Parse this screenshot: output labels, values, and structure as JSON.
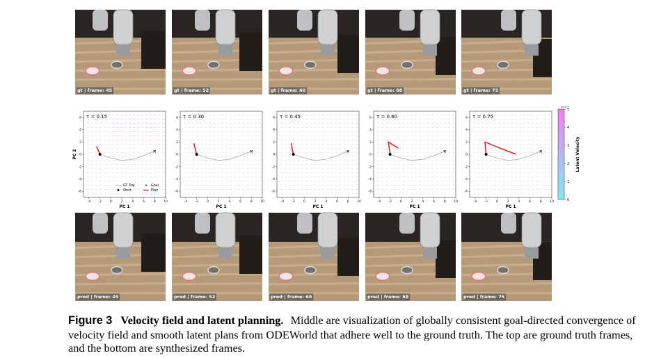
{
  "top_frames": [
    {
      "label": "gt | frame: 45"
    },
    {
      "label": "gt | frame: 52"
    },
    {
      "label": "gt | frame: 60"
    },
    {
      "label": "gt | frame: 68"
    },
    {
      "label": "gt | frame: 75"
    }
  ],
  "bottom_frames": [
    {
      "label": "pred | frame: 45"
    },
    {
      "label": "pred | frame: 52"
    },
    {
      "label": "pred | frame: 60"
    },
    {
      "label": "pred | frame: 68"
    },
    {
      "label": "pred | frame: 75"
    }
  ],
  "chart_data": [
    {
      "type": "line",
      "title": "τ = 0.15",
      "xlabel": "PC 1",
      "ylabel": "PC 2",
      "xlim": [
        -5,
        10
      ],
      "ylim": [
        -7,
        7
      ],
      "xticks": [
        -4,
        -2,
        0,
        2,
        4,
        6,
        8,
        10
      ],
      "yticks": [
        -6,
        -4,
        -2,
        0,
        2,
        4,
        6
      ],
      "legend": "lower right",
      "series": [
        {
          "name": "GT Traj",
          "color": "#b0b0b0",
          "x": [
            -2,
            0,
            2,
            4,
            6,
            8
          ],
          "values": [
            0,
            -0.6,
            -1,
            -0.8,
            -0.2,
            0.5
          ]
        },
        {
          "name": "Plan",
          "color": "#e01010",
          "x": [
            -2,
            -2.6
          ],
          "values": [
            0,
            1.3
          ]
        },
        {
          "name": "Start",
          "color": "#000000",
          "marker": "o",
          "x": [
            -2
          ],
          "values": [
            0
          ]
        },
        {
          "name": "Goal",
          "color": "#000000",
          "marker": "x",
          "x": [
            8
          ],
          "values": [
            0.5
          ]
        }
      ]
    },
    {
      "type": "line",
      "title": "τ = 0.30",
      "xlabel": "PC 1",
      "xlim": [
        -5,
        10
      ],
      "ylim": [
        -7,
        7
      ],
      "xticks": [
        -4,
        -2,
        0,
        2,
        4,
        6,
        8,
        10
      ],
      "yticks": [
        -6,
        -4,
        -2,
        0,
        2,
        4,
        6
      ],
      "series": [
        {
          "color": "#b0b0b0",
          "x": [
            -2,
            0,
            2,
            4,
            6,
            8
          ],
          "values": [
            0,
            -0.6,
            -1,
            -0.8,
            -0.2,
            0.5
          ]
        },
        {
          "color": "#e01010",
          "x": [
            -2,
            -2.5
          ],
          "values": [
            0,
            1.8
          ]
        },
        {
          "color": "#000000",
          "marker": "o",
          "x": [
            -2
          ],
          "values": [
            0
          ]
        },
        {
          "color": "#000000",
          "marker": "x",
          "x": [
            8
          ],
          "values": [
            0.5
          ]
        }
      ]
    },
    {
      "type": "line",
      "title": "τ = 0.45",
      "xlabel": "PC 1",
      "xlim": [
        -5,
        10
      ],
      "ylim": [
        -7,
        7
      ],
      "xticks": [
        -4,
        -2,
        0,
        2,
        4,
        6,
        8,
        10
      ],
      "yticks": [
        -6,
        -4,
        -2,
        0,
        2,
        4,
        6
      ],
      "series": [
        {
          "color": "#b0b0b0",
          "x": [
            -2,
            0,
            2,
            4,
            6,
            8
          ],
          "values": [
            0,
            -0.6,
            -1,
            -0.8,
            -0.2,
            0.5
          ]
        },
        {
          "color": "#e01010",
          "x": [
            -2,
            -2.4
          ],
          "values": [
            0,
            1.8
          ]
        },
        {
          "color": "#000000",
          "marker": "o",
          "x": [
            -2
          ],
          "values": [
            0
          ]
        },
        {
          "color": "#000000",
          "marker": "x",
          "x": [
            8
          ],
          "values": [
            0.5
          ]
        }
      ]
    },
    {
      "type": "line",
      "title": "τ = 0.60",
      "xlabel": "PC 1",
      "xlim": [
        -5,
        10
      ],
      "ylim": [
        -7,
        7
      ],
      "xticks": [
        -4,
        -2,
        0,
        2,
        4,
        6,
        8,
        10
      ],
      "yticks": [
        -6,
        -4,
        -2,
        0,
        2,
        4,
        6
      ],
      "series": [
        {
          "color": "#b0b0b0",
          "x": [
            -2,
            0,
            2,
            4,
            6,
            8
          ],
          "values": [
            0,
            -0.6,
            -1,
            -0.8,
            -0.2,
            0.5
          ]
        },
        {
          "color": "#e01010",
          "x": [
            -2,
            -2.3,
            -0.5
          ],
          "values": [
            0,
            2,
            1
          ]
        },
        {
          "color": "#000000",
          "marker": "o",
          "x": [
            -2
          ],
          "values": [
            0
          ]
        },
        {
          "color": "#000000",
          "marker": "x",
          "x": [
            8
          ],
          "values": [
            0.5
          ]
        }
      ]
    },
    {
      "type": "line",
      "title": "τ = 0.75",
      "xlabel": "PC 1",
      "xlim": [
        -5,
        10
      ],
      "ylim": [
        -7,
        7
      ],
      "xticks": [
        -4,
        -2,
        0,
        2,
        4,
        6,
        8,
        10
      ],
      "yticks": [
        -6,
        -4,
        -2,
        0,
        2,
        4,
        6
      ],
      "series": [
        {
          "color": "#b0b0b0",
          "x": [
            -2,
            0,
            2,
            4,
            6,
            8
          ],
          "values": [
            0,
            -0.6,
            -1,
            -0.8,
            -0.2,
            0.5
          ]
        },
        {
          "color": "#e01010",
          "x": [
            -2,
            -2.2,
            0,
            2,
            3.5
          ],
          "values": [
            0,
            2,
            1.2,
            0.5,
            0
          ]
        },
        {
          "color": "#000000",
          "marker": "o",
          "x": [
            -2
          ],
          "values": [
            0
          ]
        },
        {
          "color": "#000000",
          "marker": "x",
          "x": [
            8
          ],
          "values": [
            0.5
          ]
        }
      ]
    }
  ],
  "colorbar": {
    "label": "Latent Velocity",
    "multiplier": "×10⁻¹",
    "lim": [
      0,
      5
    ],
    "ticks": [
      0,
      1,
      2,
      3,
      4,
      5
    ]
  },
  "caption": {
    "label": "Figure 3",
    "title": "Velocity field and latent planning.",
    "text": "Middle are visualization of globally consistent goal-directed convergence of velocity field and smooth latent plans from ODEWorld that adhere well to the ground truth. The top are ground truth frames, and the bottom are synthesized frames."
  }
}
